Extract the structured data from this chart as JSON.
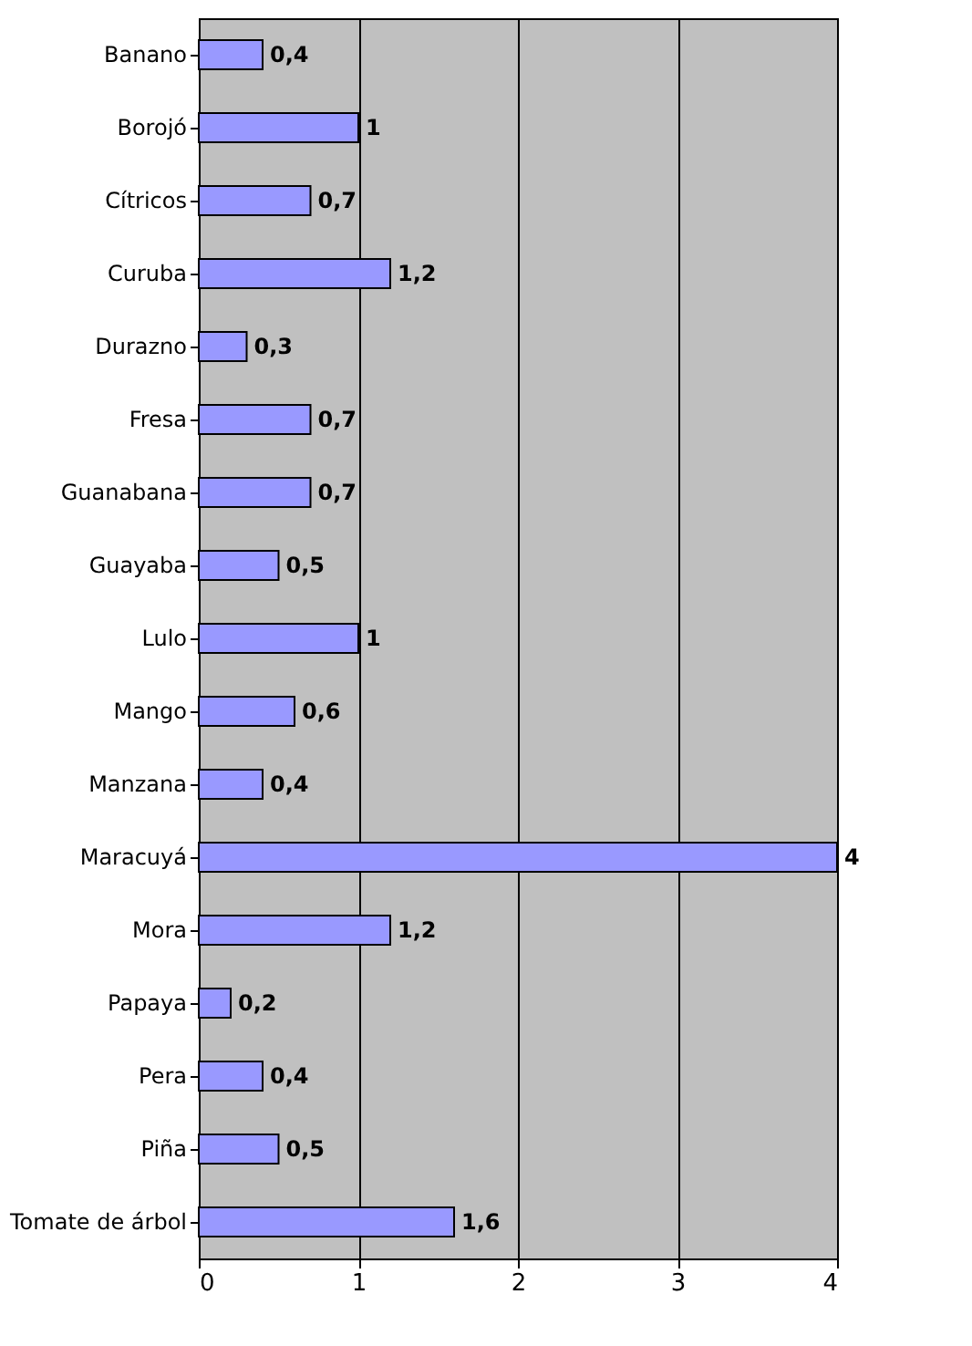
{
  "chart_data": {
    "type": "bar",
    "orientation": "horizontal",
    "categories": [
      "Banano",
      "Borojó",
      "Cítricos",
      "Curuba",
      "Durazno",
      "Fresa",
      "Guanabana",
      "Guayaba",
      "Lulo",
      "Mango",
      "Manzana",
      "Maracuyá",
      "Mora",
      "Papaya",
      "Pera",
      "Piña",
      "Tomate de árbol"
    ],
    "values": [
      0.4,
      1,
      0.7,
      1.2,
      0.3,
      0.7,
      0.7,
      0.5,
      1,
      0.6,
      0.4,
      4,
      1.2,
      0.2,
      0.4,
      0.5,
      1.6
    ],
    "value_labels": [
      "0,4",
      "1",
      "0,7",
      "1,2",
      "0,3",
      "0,7",
      "0,7",
      "0,5",
      "1",
      "0,6",
      "0,4",
      "4",
      "1,2",
      "0,2",
      "0,4",
      "0,5",
      "1,6"
    ],
    "color": "#9999ff",
    "xlim": [
      0,
      4
    ],
    "xticks": [
      0,
      1,
      2,
      3,
      4
    ],
    "grid": "x"
  }
}
